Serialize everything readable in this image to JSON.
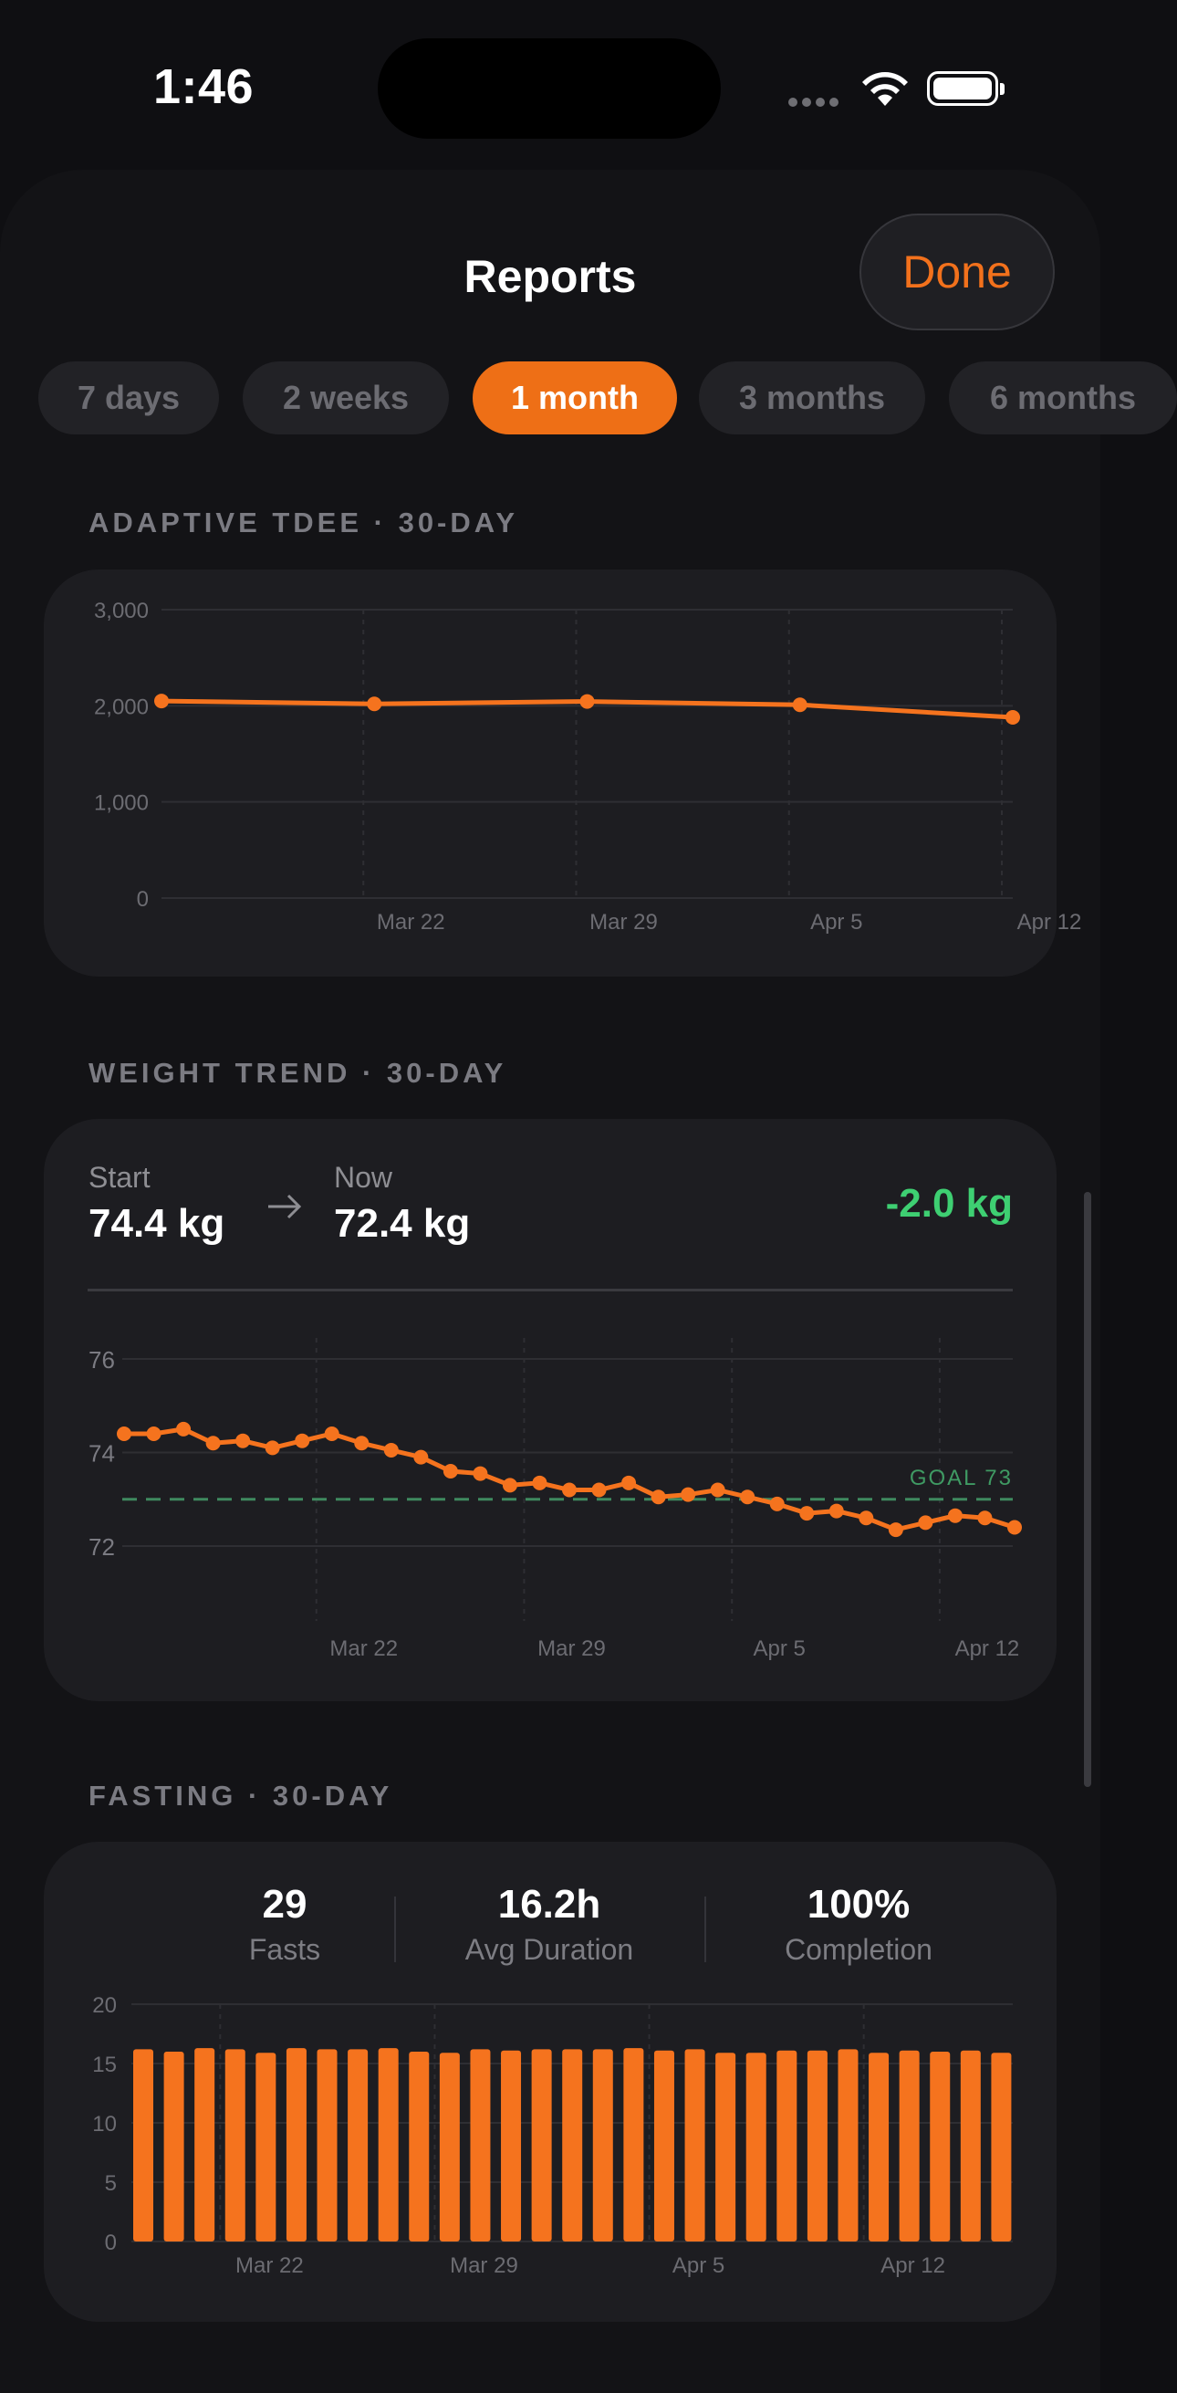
{
  "status": {
    "time": "1:46"
  },
  "header": {
    "title": "Reports",
    "done_label": "Done"
  },
  "tabs": [
    {
      "label": "7 days",
      "active": false
    },
    {
      "label": "2 weeks",
      "active": false
    },
    {
      "label": "1 month",
      "active": true
    },
    {
      "label": "3 months",
      "active": false
    },
    {
      "label": "6 months",
      "active": false
    }
  ],
  "tdee": {
    "section_label": "ADAPTIVE TDEE · 30-DAY",
    "chart_data": {
      "type": "line",
      "ylim": [
        0,
        3000
      ],
      "yticks": [
        "3,000",
        "2,000",
        "1,000",
        "0"
      ],
      "xticks": [
        "Mar 22",
        "Mar 29",
        "Apr 5",
        "Apr 12"
      ],
      "series": [
        {
          "x": [
            0,
            7,
            14,
            21,
            28
          ],
          "values": [
            2050,
            2020,
            2045,
            2010,
            1880
          ]
        }
      ]
    }
  },
  "weight": {
    "section_label": "WEIGHT TREND · 30-DAY",
    "start_label": "Start",
    "start_value": "74.4 kg",
    "now_label": "Now",
    "now_value": "72.4 kg",
    "delta": "-2.0 kg",
    "goal_label": "GOAL 73",
    "chart_data": {
      "type": "line",
      "ylim": [
        71,
        76.5
      ],
      "yticks": [
        "76",
        "74",
        "72"
      ],
      "xticks": [
        "Mar 22",
        "Mar 29",
        "Apr 5",
        "Apr 12"
      ],
      "goal": 73,
      "series": [
        {
          "values": [
            74.4,
            74.4,
            74.5,
            74.2,
            74.25,
            74.1,
            74.25,
            74.4,
            74.2,
            74.05,
            73.9,
            73.6,
            73.55,
            73.3,
            73.35,
            73.2,
            73.2,
            73.35,
            73.05,
            73.1,
            73.2,
            73.05,
            72.9,
            72.7,
            72.75,
            72.6,
            72.35,
            72.5,
            72.65,
            72.6,
            72.4
          ]
        }
      ]
    }
  },
  "fasting": {
    "section_label": "FASTING · 30-DAY",
    "stats": [
      {
        "value": "29",
        "label": "Fasts"
      },
      {
        "value": "16.2h",
        "label": "Avg Duration"
      },
      {
        "value": "100%",
        "label": "Completion"
      }
    ],
    "chart_data": {
      "type": "bar",
      "ylim": [
        0,
        20
      ],
      "yticks": [
        "20",
        "15",
        "10",
        "5",
        "0"
      ],
      "xticks": [
        "Mar 22",
        "Mar 29",
        "Apr 5",
        "Apr 12"
      ],
      "values": [
        16.2,
        16.0,
        16.3,
        16.2,
        15.9,
        16.3,
        16.2,
        16.2,
        16.3,
        16.0,
        15.9,
        16.2,
        16.1,
        16.2,
        16.2,
        16.2,
        16.3,
        16.1,
        16.2,
        15.9,
        15.9,
        16.1,
        16.1,
        16.2,
        15.9,
        16.1,
        16.0,
        16.1,
        15.9
      ]
    }
  },
  "colors": {
    "accent": "#f5731e",
    "positive": "#3ecf72",
    "goal": "#3f8a5f"
  }
}
